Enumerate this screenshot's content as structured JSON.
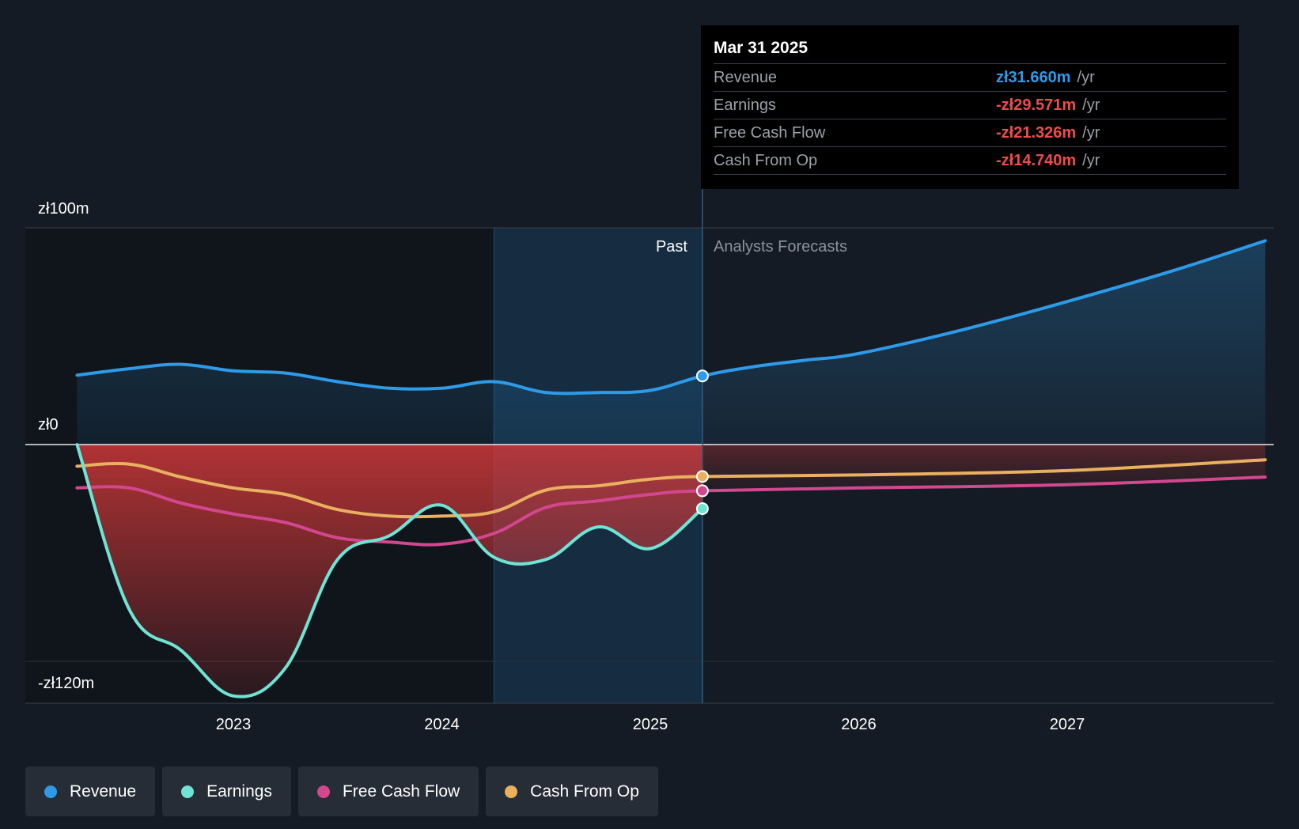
{
  "tooltip": {
    "date": "Mar 31 2025",
    "rows": [
      {
        "name": "Revenue",
        "value": "zł31.660m",
        "unit": "/yr",
        "color": "#2d9be8"
      },
      {
        "name": "Earnings",
        "value": "-zł29.571m",
        "unit": "/yr",
        "color": "#ef4b4b"
      },
      {
        "name": "Free Cash Flow",
        "value": "-zł21.326m",
        "unit": "/yr",
        "color": "#ef4b4b"
      },
      {
        "name": "Cash From Op",
        "value": "-zł14.740m",
        "unit": "/yr",
        "color": "#ef4b4b"
      }
    ]
  },
  "labels": {
    "past": "Past",
    "forecast": "Analysts Forecasts",
    "y_top": "zł100m",
    "y_zero": "zł0",
    "y_bottom": "-zł120m"
  },
  "legend": [
    {
      "name": "Revenue",
      "color": "#2d9be8"
    },
    {
      "name": "Earnings",
      "color": "#6fe3d4"
    },
    {
      "name": "Free Cash Flow",
      "color": "#d3478f"
    },
    {
      "name": "Cash From Op",
      "color": "#e9b060"
    }
  ],
  "chart_data": {
    "type": "line",
    "x_unit": "year",
    "xlim": [
      2022.0,
      2028.0
    ],
    "ylim": [
      -120,
      100
    ],
    "y_ticks": [
      {
        "value": 100,
        "label": "zł100m"
      },
      {
        "value": 0,
        "label": "zł0"
      },
      {
        "value": -100,
        "label": ""
      }
    ],
    "x_ticks": [
      2023,
      2024,
      2025,
      2026,
      2027
    ],
    "past_end": 2025.25,
    "highlight_start": 2024.25,
    "grid": true,
    "legend_position": "bottom",
    "series": [
      {
        "name": "Revenue",
        "color": "#2d9be8",
        "area": true,
        "points": [
          [
            2022.25,
            32
          ],
          [
            2022.5,
            35
          ],
          [
            2022.75,
            37
          ],
          [
            2023.0,
            34
          ],
          [
            2023.25,
            33
          ],
          [
            2023.5,
            29
          ],
          [
            2023.75,
            26
          ],
          [
            2024.0,
            26
          ],
          [
            2024.25,
            29
          ],
          [
            2024.5,
            24
          ],
          [
            2024.75,
            24
          ],
          [
            2025.0,
            25
          ],
          [
            2025.25,
            31.66
          ],
          [
            2025.5,
            36
          ],
          [
            2025.75,
            39
          ],
          [
            2026.0,
            42
          ],
          [
            2026.5,
            53
          ],
          [
            2027.0,
            66
          ],
          [
            2027.5,
            80
          ],
          [
            2027.95,
            94
          ]
        ]
      },
      {
        "name": "Earnings",
        "color": "#6fe3d4",
        "area": true,
        "points": [
          [
            2022.25,
            0
          ],
          [
            2022.5,
            -76
          ],
          [
            2022.75,
            -95
          ],
          [
            2023.0,
            -116
          ],
          [
            2023.25,
            -103
          ],
          [
            2023.5,
            -53
          ],
          [
            2023.75,
            -42
          ],
          [
            2024.0,
            -28
          ],
          [
            2024.25,
            -52
          ],
          [
            2024.5,
            -53
          ],
          [
            2024.75,
            -38
          ],
          [
            2025.0,
            -48
          ],
          [
            2025.25,
            -29.571
          ]
        ]
      },
      {
        "name": "Free Cash Flow",
        "color": "#d3478f",
        "area": false,
        "points": [
          [
            2022.25,
            -20
          ],
          [
            2022.5,
            -20
          ],
          [
            2022.75,
            -27
          ],
          [
            2023.0,
            -32
          ],
          [
            2023.25,
            -36
          ],
          [
            2023.5,
            -43
          ],
          [
            2023.75,
            -45
          ],
          [
            2024.0,
            -46
          ],
          [
            2024.25,
            -41
          ],
          [
            2024.5,
            -29
          ],
          [
            2024.75,
            -26
          ],
          [
            2025.0,
            -23
          ],
          [
            2025.25,
            -21.326
          ],
          [
            2026.0,
            -20
          ],
          [
            2027.0,
            -18.5
          ],
          [
            2027.95,
            -15
          ]
        ]
      },
      {
        "name": "Cash From Op",
        "color": "#e9b060",
        "area": false,
        "points": [
          [
            2022.25,
            -10
          ],
          [
            2022.5,
            -9
          ],
          [
            2022.75,
            -15
          ],
          [
            2023.0,
            -20
          ],
          [
            2023.25,
            -23
          ],
          [
            2023.5,
            -30
          ],
          [
            2023.75,
            -33
          ],
          [
            2024.0,
            -33
          ],
          [
            2024.25,
            -31
          ],
          [
            2024.5,
            -21
          ],
          [
            2024.75,
            -19
          ],
          [
            2025.0,
            -16
          ],
          [
            2025.25,
            -14.74
          ],
          [
            2026.0,
            -14
          ],
          [
            2027.0,
            -12
          ],
          [
            2027.95,
            -7
          ]
        ]
      }
    ]
  }
}
